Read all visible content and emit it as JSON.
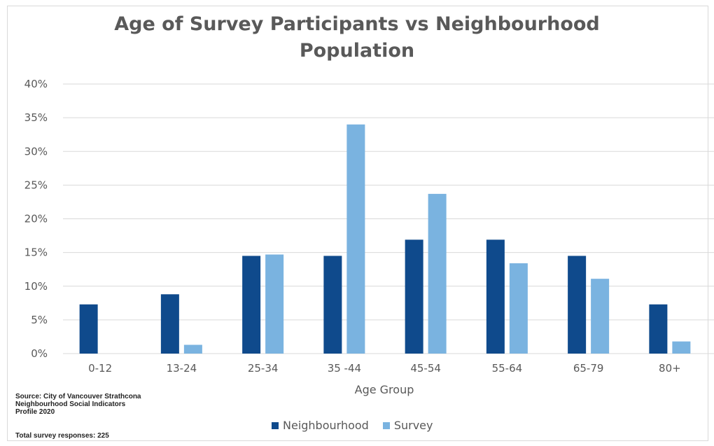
{
  "colors": {
    "neighbourhood": "#0f4a8c",
    "survey": "#7ab3e0",
    "grid": "#d9d9d9",
    "text": "#595959"
  },
  "chart_data": {
    "type": "bar",
    "title_line1": "Age of Survey Participants vs Neighbourhood",
    "title_line2": "Population",
    "xlabel": "Age Group",
    "ylabel": "",
    "categories": [
      "0-12",
      "13-24",
      "25-34",
      "35 -44",
      "45-54",
      "55-64",
      "65-79",
      "80+"
    ],
    "series": [
      {
        "name": "Neighbourhood",
        "values": [
          7.3,
          8.8,
          14.5,
          14.5,
          16.9,
          16.9,
          14.5,
          7.3
        ]
      },
      {
        "name": "Survey",
        "values": [
          0,
          1.3,
          14.7,
          34.0,
          23.7,
          13.4,
          11.1,
          1.8
        ]
      }
    ],
    "ylim": [
      0,
      40
    ],
    "yticks": [
      "0%",
      "5%",
      "10%",
      "15%",
      "20%",
      "25%",
      "30%",
      "35%",
      "40%"
    ],
    "grid": true,
    "legend_position": "bottom"
  },
  "footer": {
    "source": "Source: City of Vancouver Strathcona\nNeighbourhood Social Indicators\nProfile 2020",
    "total": "Total survey responses: 225"
  }
}
